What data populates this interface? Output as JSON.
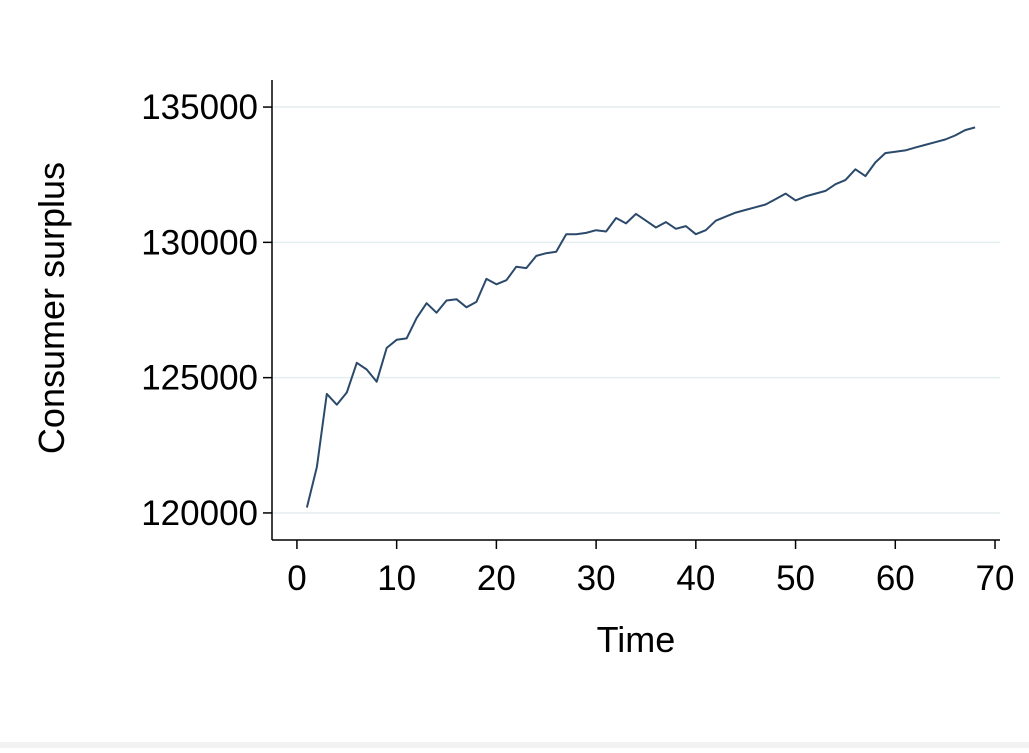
{
  "chart_data": {
    "type": "line",
    "title": "",
    "xlabel": "Time",
    "ylabel": "Consumer surplus",
    "xlim": [
      -2.5,
      70.5
    ],
    "ylim": [
      119000,
      136000
    ],
    "x_ticks": [
      0,
      10,
      20,
      30,
      40,
      50,
      60,
      70
    ],
    "x_tick_labels": [
      "0",
      "10",
      "20",
      "30",
      "40",
      "50",
      "60",
      "70"
    ],
    "y_ticks": [
      120000,
      125000,
      130000,
      135000
    ],
    "y_tick_labels": [
      "120000",
      "125000",
      "130000",
      "135000"
    ],
    "grid": "horizontal",
    "legend": "none",
    "colors": {
      "line": "#2b4a6b",
      "grid": "#e5eef0",
      "axis": "#000000"
    },
    "series": [
      {
        "x": [
          1,
          2,
          3,
          4,
          5,
          6,
          7,
          8,
          9,
          10,
          11,
          12,
          13,
          14,
          15,
          16,
          17,
          18,
          19,
          20,
          21,
          22,
          23,
          24,
          25,
          26,
          27,
          28,
          29,
          30,
          31,
          32,
          33,
          34,
          35,
          36,
          37,
          38,
          39,
          40,
          41,
          42,
          43,
          44,
          45,
          46,
          47,
          48,
          49,
          50,
          51,
          52,
          53,
          54,
          55,
          56,
          57,
          58,
          59,
          60,
          61,
          62,
          63,
          64,
          65,
          66,
          67,
          68
        ],
        "values": [
          120200,
          121700,
          124400,
          124000,
          124450,
          125550,
          125300,
          124850,
          126100,
          126400,
          126450,
          127200,
          127750,
          127400,
          127850,
          127900,
          127600,
          127800,
          128650,
          128450,
          128600,
          129100,
          129050,
          129500,
          129600,
          129650,
          130300,
          130300,
          130350,
          130450,
          130400,
          130900,
          130700,
          131050,
          130800,
          130550,
          130750,
          130500,
          130600,
          130300,
          130450,
          130800,
          130950,
          131100,
          131200,
          131300,
          131400,
          131600,
          131800,
          131550,
          131700,
          131800,
          131900,
          132150,
          132300,
          132700,
          132450,
          132950,
          133300,
          133350,
          133400,
          133500,
          133600,
          133700,
          133800,
          133950,
          134150,
          134250
        ]
      }
    ]
  }
}
